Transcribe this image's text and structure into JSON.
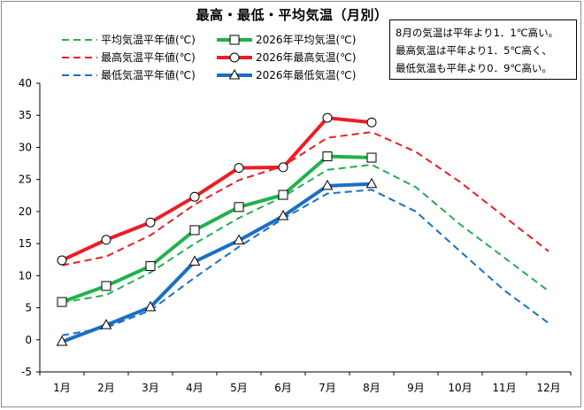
{
  "title": "最高・最低・平均気温（月別）",
  "note": {
    "lines": [
      "8月の気温は平年より1．1℃高い。",
      "最高気温は平年より1．5℃高く、",
      "最低気温も平年より0．9℃高い。"
    ]
  },
  "colors": {
    "avg": "#22b14c",
    "max": "#ee1c24",
    "min": "#1a6fc4"
  },
  "chart_data": {
    "type": "line",
    "title": "最高・最低・平均気温（月別）",
    "categories": [
      "1月",
      "2月",
      "3月",
      "4月",
      "5月",
      "6月",
      "7月",
      "8月",
      "9月",
      "10月",
      "11月",
      "12月"
    ],
    "ylim": [
      -5,
      40
    ],
    "yticks": [
      -5,
      0,
      5,
      10,
      15,
      20,
      25,
      30,
      35,
      40
    ],
    "grid": false,
    "legend_position": "top-left",
    "series": [
      {
        "name": "平均気温平年値(℃)",
        "key": "avg",
        "style": "dashed",
        "marker": "none",
        "values": [
          5.8,
          7.0,
          10.5,
          15.0,
          19.0,
          22.3,
          26.5,
          27.3,
          23.8,
          18.0,
          12.8,
          7.6
        ]
      },
      {
        "name": "2026年平均気温(℃)",
        "key": "avg",
        "style": "solid",
        "marker": "square",
        "values": [
          5.9,
          8.4,
          11.5,
          17.1,
          20.7,
          22.6,
          28.6,
          28.4,
          null,
          null,
          null,
          null
        ]
      },
      {
        "name": "最高気温平年値(℃)",
        "key": "max",
        "style": "dashed",
        "marker": "none",
        "values": [
          11.6,
          13.0,
          16.3,
          21.1,
          24.9,
          27.1,
          31.5,
          32.4,
          29.3,
          24.6,
          19.2,
          13.8
        ]
      },
      {
        "name": "2026年最高気温(℃)",
        "key": "max",
        "style": "solid",
        "marker": "circle",
        "values": [
          12.4,
          15.6,
          18.3,
          22.3,
          26.8,
          26.9,
          34.6,
          33.9,
          null,
          null,
          null,
          null
        ]
      },
      {
        "name": "最低気温平年値(℃)",
        "key": "min",
        "style": "dashed",
        "marker": "none",
        "values": [
          0.7,
          1.9,
          4.6,
          9.7,
          14.5,
          18.9,
          22.8,
          23.4,
          20.0,
          13.8,
          7.7,
          2.6
        ]
      },
      {
        "name": "2026年最低気温(℃)",
        "key": "min",
        "style": "solid",
        "marker": "triangle",
        "values": [
          -0.3,
          2.3,
          5.1,
          12.2,
          15.5,
          19.3,
          24.0,
          24.3,
          null,
          null,
          null,
          null
        ]
      }
    ]
  }
}
